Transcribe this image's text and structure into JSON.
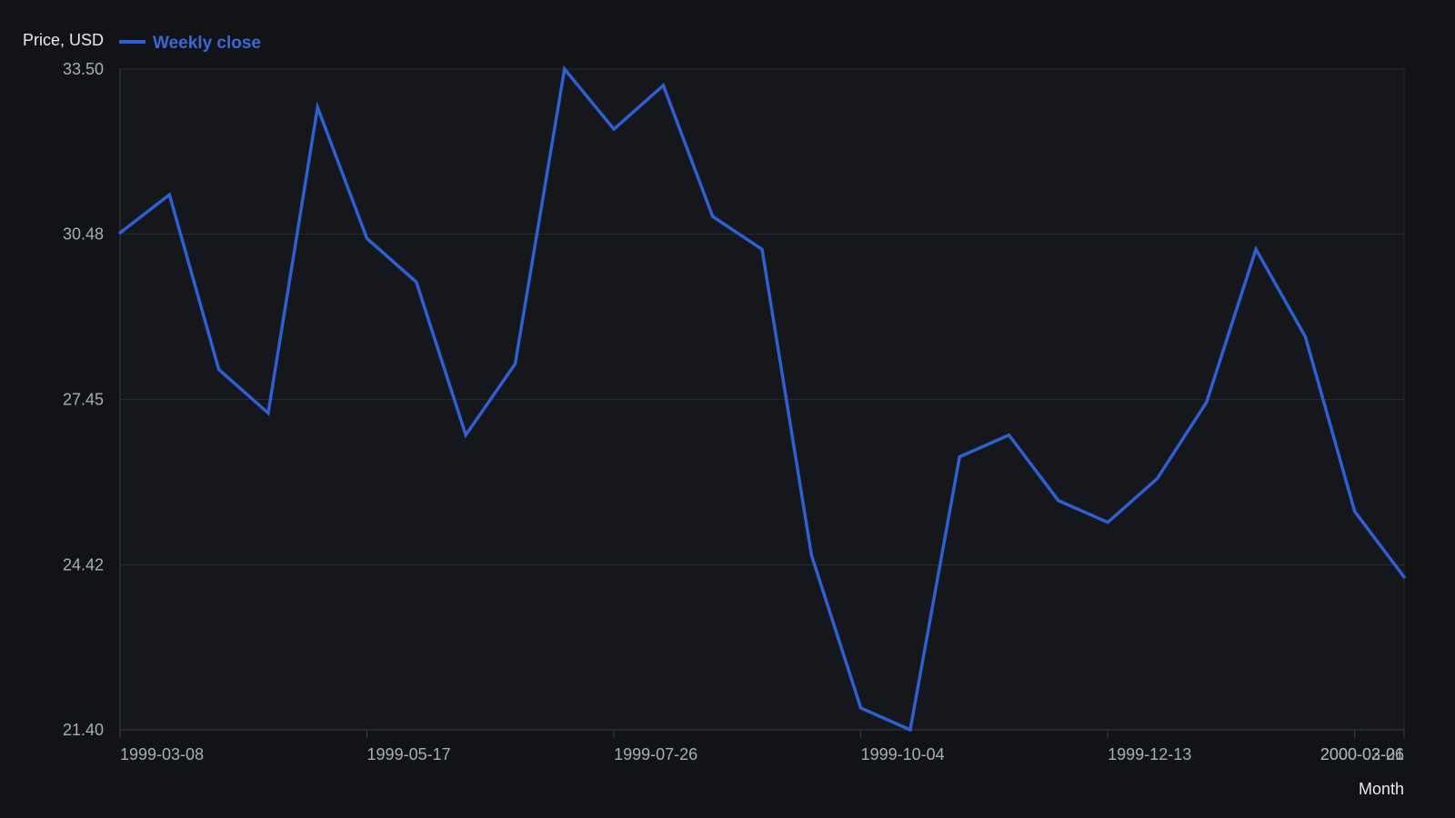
{
  "chart_data": {
    "type": "line",
    "ylabel": "Price, USD",
    "xlabel": "Month",
    "yticks": [
      "33.50",
      "30.48",
      "27.45",
      "24.42",
      "21.40"
    ],
    "ylim": [
      21.4,
      33.5
    ],
    "xticks": [
      "1999-03-08",
      "1999-05-17",
      "1999-07-26",
      "1999-10-04",
      "1999-12-13",
      "2000-02-21",
      "2000-03-06"
    ],
    "xlim": [
      "1999-03-08",
      "2000-03-06"
    ],
    "grid": "horizontal",
    "legend_position": "top-left",
    "x": [
      "1999-03-08",
      "1999-03-22",
      "1999-04-05",
      "1999-04-19",
      "1999-05-03",
      "1999-05-17",
      "1999-05-31",
      "1999-06-14",
      "1999-06-28",
      "1999-07-12",
      "1999-07-26",
      "1999-08-09",
      "1999-08-23",
      "1999-09-06",
      "1999-09-20",
      "1999-10-04",
      "1999-10-18",
      "1999-11-01",
      "1999-11-15",
      "1999-11-29",
      "1999-12-13",
      "1999-12-27",
      "2000-01-10",
      "2000-01-24",
      "2000-02-07",
      "2000-02-21",
      "2000-03-06"
    ],
    "series": [
      {
        "name": "Weekly close",
        "color": "#2f5fd0",
        "values": [
          30.5,
          31.2,
          28.0,
          27.2,
          32.8,
          30.4,
          29.6,
          26.8,
          28.1,
          33.5,
          32.4,
          33.2,
          30.8,
          30.2,
          24.6,
          21.8,
          21.4,
          26.4,
          26.8,
          25.6,
          25.2,
          26.0,
          27.4,
          30.2,
          28.6,
          25.4,
          24.2
        ]
      }
    ]
  }
}
